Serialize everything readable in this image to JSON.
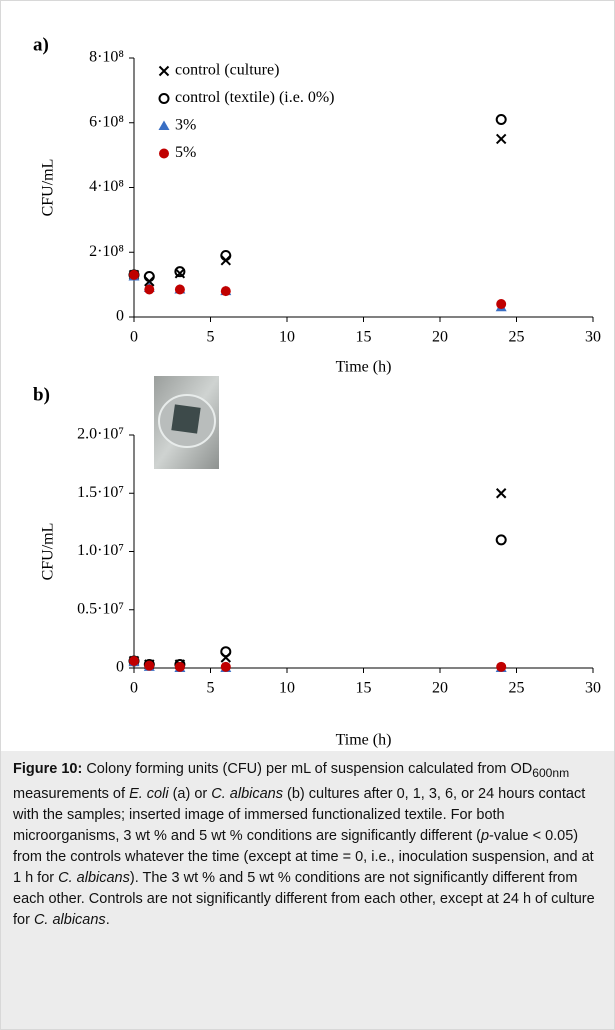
{
  "chart_data": [
    {
      "type": "scatter",
      "panel_label": "a)",
      "ylabel": "CFU/mL",
      "xlabel": "Time (h)",
      "x": [
        0,
        1,
        3,
        6,
        24
      ],
      "xlim": [
        0,
        30
      ],
      "xticks": [
        0,
        5,
        10,
        15,
        20,
        25,
        30
      ],
      "ylim": [
        0,
        800000000
      ],
      "yticks": [
        0,
        {
          "value": 200000000,
          "label": "2·10⁸"
        },
        {
          "value": 400000000,
          "label": "4·10⁸"
        },
        {
          "value": 600000000,
          "label": "6·10⁸"
        },
        {
          "value": 800000000,
          "label": "8·10⁸"
        }
      ],
      "legend": "upper left",
      "series": [
        {
          "name": "control (culture)",
          "color": "#000000",
          "marker": "x",
          "values": [
            130000000,
            110000000,
            135000000,
            175000000,
            550000000
          ]
        },
        {
          "name": "control (textile) (i.e. 0%)",
          "color": "#000000",
          "marker": "open-circle",
          "values": [
            130000000,
            125000000,
            140000000,
            190000000,
            610000000
          ]
        },
        {
          "name": "3%",
          "color": "#3a6fc4",
          "marker": "triangle",
          "values": [
            125000000,
            90000000,
            85000000,
            80000000,
            30000000
          ]
        },
        {
          "name": "5%",
          "color": "#c00000",
          "marker": "circle",
          "values": [
            130000000,
            85000000,
            85000000,
            80000000,
            40000000
          ]
        }
      ]
    },
    {
      "type": "scatter",
      "panel_label": "b)",
      "ylabel": "CFU/mL",
      "xlabel": "Time (h)",
      "x": [
        0,
        1,
        3,
        6,
        24
      ],
      "xlim": [
        0,
        30
      ],
      "xticks": [
        0,
        5,
        10,
        15,
        20,
        25,
        30
      ],
      "ylim": [
        0,
        20000000
      ],
      "yticks": [
        0,
        {
          "value": 5000000,
          "label": "0.5·10⁷"
        },
        {
          "value": 10000000,
          "label": "1.0·10⁷"
        },
        {
          "value": 15000000,
          "label": "1.5·10⁷"
        },
        {
          "value": 20000000,
          "label": "2.0·10⁷"
        }
      ],
      "series": [
        {
          "color": "#000000",
          "marker": "x",
          "values": [
            600000,
            300000,
            300000,
            900000,
            15000000
          ]
        },
        {
          "color": "#000000",
          "marker": "open-circle",
          "values": [
            600000,
            300000,
            300000,
            1400000,
            11000000
          ]
        },
        {
          "color": "#3a6fc4",
          "marker": "triangle",
          "values": [
            500000,
            100000,
            0,
            0,
            0
          ]
        },
        {
          "color": "#c00000",
          "marker": "circle",
          "values": [
            600000,
            200000,
            100000,
            100000,
            100000
          ]
        }
      ]
    }
  ],
  "caption": [
    "Figure 10:",
    " Colony forming units (CFU) per mL of suspension calculated from OD",
    "600nm",
    " measurements of ",
    "E. coli",
    " (a) or ",
    "C. albicans",
    " (b) cultures after 0, 1, 3, 6, or 24 hours contact with the samples; inserted image of immersed functionalized textile. For both microorganisms, 3 wt % and 5 wt % conditions are significantly different (",
    "p",
    "-value < 0.05) from the controls whatever the time (except at time = 0, i.e., inoculation suspension, and at 1 h for ",
    "C. albicans",
    "). The 3 wt % and 5 wt % conditions are not significantly different from each other. Controls are not significantly different from each other, except at 24 h of culture for ",
    "C. albicans",
    "."
  ]
}
